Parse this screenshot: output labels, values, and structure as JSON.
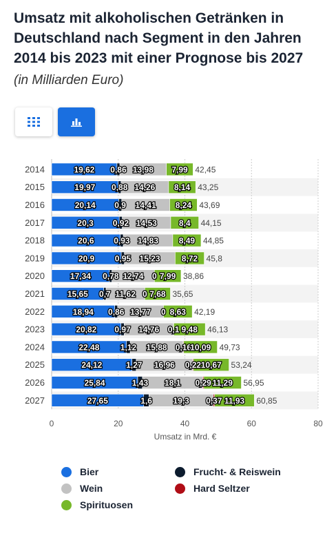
{
  "title": "Umsatz mit alkoholischen Getränken in Deutschland nach Segment in den Jahren 2014 bis 2023 mit einer Prognose bis 2027",
  "subtitle": "(in Milliarden Euro)",
  "view_toggle": {
    "table_icon": "grid-icon",
    "chart_icon": "bar-chart-icon",
    "active": "chart"
  },
  "chart_data": {
    "type": "bar",
    "orientation": "horizontal",
    "stacked": true,
    "categories": [
      "2014",
      "2015",
      "2016",
      "2017",
      "2018",
      "2019",
      "2020",
      "2021",
      "2022",
      "2023",
      "2024",
      "2025",
      "2026",
      "2027"
    ],
    "series": [
      {
        "name": "Bier",
        "color": "#1a6fe0",
        "values": [
          19.62,
          19.97,
          20.14,
          20.3,
          20.6,
          20.9,
          17.34,
          15.65,
          18.94,
          20.82,
          22.48,
          24.12,
          25.84,
          27.65
        ],
        "labels": [
          "19,62",
          "19,97",
          "20,14",
          "20,3",
          "20,6",
          "20,9",
          "17,34",
          "15,65",
          "18,94",
          "20,82",
          "22,48",
          "24,12",
          "25,84",
          "27,65"
        ]
      },
      {
        "name": "Frucht- & Reiswein",
        "color": "#0c1c2e",
        "values": [
          0.86,
          0.88,
          0.9,
          0.92,
          0.93,
          0.95,
          0.78,
          0.7,
          0.86,
          0.97,
          1.12,
          1.27,
          1.43,
          1.6
        ],
        "labels": [
          "0,86",
          "0,88",
          "0,9",
          "0,92",
          "0,93",
          "0,95",
          "0,78",
          "0,7",
          "0,86",
          "0,97",
          "1,12",
          "1,27",
          "1,43",
          "1,6"
        ]
      },
      {
        "name": "Wein",
        "color": "#c2c2c2",
        "values": [
          13.98,
          14.26,
          14.41,
          14.53,
          14.83,
          15.23,
          12.74,
          11.62,
          13.77,
          14.76,
          15.88,
          16.96,
          18.1,
          19.3
        ],
        "labels": [
          "13,98",
          "14,26",
          "14,41",
          "14,53",
          "14,83",
          "15,23",
          "12,74",
          "11,62",
          "13,77",
          "14,76",
          "15,88",
          "16,96",
          "18,1",
          "19,3"
        ]
      },
      {
        "name": "Hard Seltzer",
        "color": "#b00d16",
        "values": [
          0,
          0,
          0,
          0,
          0,
          0,
          0,
          0,
          0,
          0.1,
          0.16,
          0.22,
          0.29,
          0.37
        ],
        "labels": [
          "",
          "",
          "",
          "",
          "",
          "",
          "0",
          "0",
          "0",
          "0,1",
          "0,16",
          "0,22",
          "0,29",
          "0,37"
        ]
      },
      {
        "name": "Spirituosen",
        "color": "#77b82a",
        "values": [
          7.99,
          8.14,
          8.24,
          8.4,
          8.49,
          8.72,
          7.99,
          7.68,
          8.63,
          9.48,
          10.09,
          10.67,
          11.29,
          11.93
        ],
        "labels": [
          "7,99",
          "8,14",
          "8,24",
          "8,4",
          "8,49",
          "8,72",
          "7,99",
          "7,68",
          "8,63",
          "9,48",
          "10,09",
          "10,67",
          "11,29",
          "11,93"
        ]
      }
    ],
    "totals": [
      "42,45",
      "43,25",
      "43,69",
      "44,15",
      "44,85",
      "45,8",
      "38,86",
      "35,65",
      "42,19",
      "46,13",
      "49,73",
      "53,24",
      "56,95",
      "60,85"
    ],
    "total_values": [
      42.45,
      43.25,
      43.69,
      44.15,
      44.85,
      45.8,
      38.86,
      35.65,
      42.19,
      46.13,
      49.73,
      53.24,
      56.95,
      60.85
    ],
    "xticks": [
      "0",
      "20",
      "40",
      "60",
      "80"
    ],
    "xtick_values": [
      0,
      20,
      40,
      60,
      80
    ],
    "xlim": [
      0,
      80
    ],
    "xlabel": "Umsatz in Mrd. €",
    "ylabel": "",
    "grid": true,
    "legend_position": "bottom"
  },
  "legend": [
    {
      "label": "Bier",
      "color": "#1a6fe0"
    },
    {
      "label": "Frucht- & Reiswein",
      "color": "#0c1c2e"
    },
    {
      "label": "Wein",
      "color": "#c2c2c2"
    },
    {
      "label": "Hard Seltzer",
      "color": "#b00d16"
    },
    {
      "label": "Spirituosen",
      "color": "#77b82a"
    }
  ]
}
